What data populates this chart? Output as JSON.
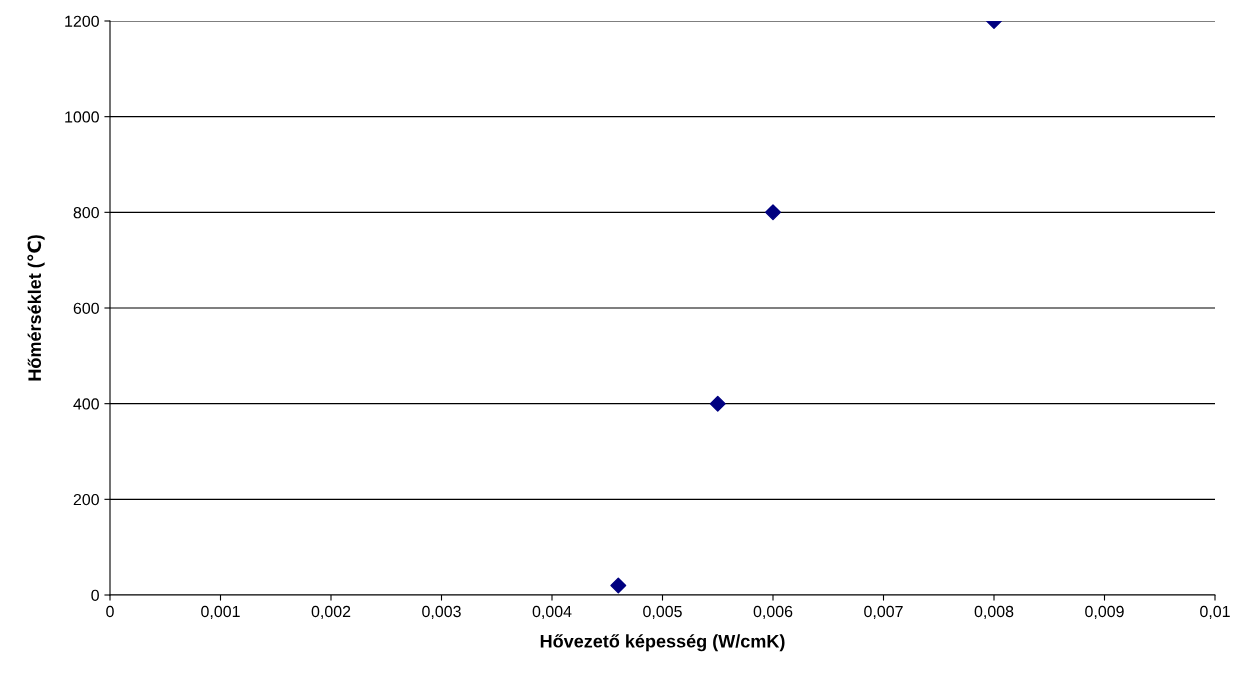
{
  "chart_data": {
    "type": "scatter",
    "xlabel": "Hővezető képesség (W/cmK)",
    "ylabel": "Hőmérséklet (℃)",
    "x": [
      0.0046,
      0.0055,
      0.006,
      0.008
    ],
    "series": [
      {
        "color": "#000080",
        "values": [
          20,
          400,
          800,
          1200
        ]
      }
    ],
    "xlim": [
      0,
      0.01
    ],
    "xticks": [
      0,
      {
        "value": 0.001,
        "label": "0,001"
      },
      {
        "value": 0.002,
        "label": "0,002"
      },
      {
        "value": 0.003,
        "label": "0,003"
      },
      {
        "value": 0.004,
        "label": "0,004"
      },
      {
        "value": 0.005,
        "label": "0,005"
      },
      {
        "value": 0.006,
        "label": "0,006"
      },
      {
        "value": 0.007,
        "label": "0,007"
      },
      {
        "value": 0.008,
        "label": "0,008"
      },
      {
        "value": 0.009,
        "label": "0,009"
      },
      {
        "value": 0.01,
        "label": "0,01"
      }
    ],
    "ylim": [
      0,
      1200
    ],
    "yticks": [
      0,
      200,
      400,
      600,
      800,
      1000,
      1200
    ],
    "grid": "y",
    "marker": "diamond"
  }
}
